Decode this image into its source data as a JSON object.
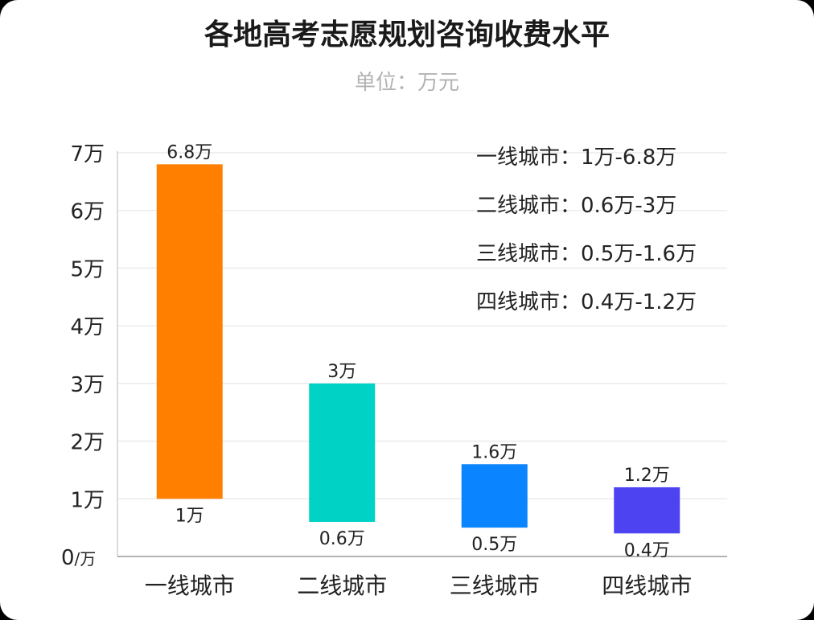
{
  "chart_data": {
    "type": "bar",
    "title": "各地高考志愿规划咨询收费水平",
    "subtitle": "单位：万元",
    "categories": [
      "一线城市",
      "二线城市",
      "三线城市",
      "四线城市"
    ],
    "ranges": [
      [
        1,
        6.8
      ],
      [
        0.6,
        3
      ],
      [
        0.5,
        1.6
      ],
      [
        0.4,
        1.2
      ]
    ],
    "low_labels": [
      "1万",
      "0.6万",
      "0.5万",
      "0.4万"
    ],
    "high_labels": [
      "6.8万",
      "3万",
      "1.6万",
      "1.2万"
    ],
    "colors": [
      "#ff7f00",
      "#00d2c6",
      "#0a84ff",
      "#4d43f0"
    ],
    "yticks": [
      {
        "value": 0,
        "main": "0",
        "unit": "/万"
      },
      {
        "value": 1,
        "main": "1万",
        "unit": ""
      },
      {
        "value": 2,
        "main": "2万",
        "unit": ""
      },
      {
        "value": 3,
        "main": "3万",
        "unit": ""
      },
      {
        "value": 4,
        "main": "4万",
        "unit": ""
      },
      {
        "value": 5,
        "main": "5万",
        "unit": ""
      },
      {
        "value": 6,
        "main": "6万",
        "unit": ""
      },
      {
        "value": 7,
        "main": "7万",
        "unit": ""
      }
    ],
    "ylim": [
      0,
      7
    ],
    "grid": true,
    "legend_placement": "top-right",
    "legend": [
      "一线城市：1万-6.8万",
      "二线城市：0.6万-3万",
      "三线城市：0.5万-1.6万",
      "四线城市：0.4万-1.2万"
    ]
  }
}
